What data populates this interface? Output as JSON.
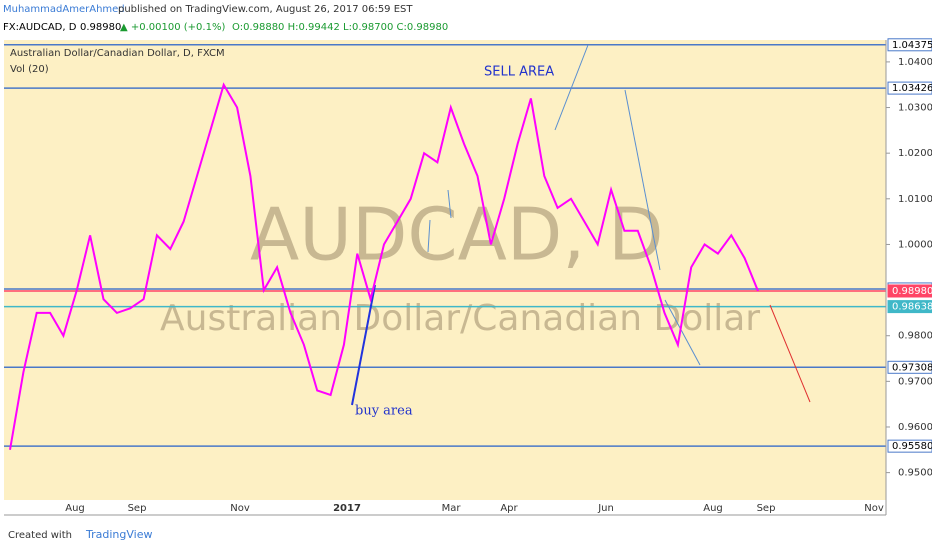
{
  "header": {
    "author": "MuhammadAmerAhmed",
    "published": "published on TradingView.com, August 26, 2017 06:59 EST",
    "symbol": "FX:AUDCAD, D",
    "last": "0.98980",
    "change": "▲ +0.00100 (+0.1%)",
    "ohlc": "O:0.98880 H:0.99442 L:0.98700 C:0.98980"
  },
  "chart_data": {
    "type": "line",
    "title": "Australian Dollar/Canadian Dollar, D, FXCM",
    "indicator": "Vol (20)",
    "watermark": "AUDCAD, D",
    "watermark_sub": "Australian Dollar/Canadian Dollar",
    "annotations": [
      "SELL AREA",
      "buy area"
    ],
    "xtick_labels": [
      "Aug",
      "Sep",
      "Nov",
      "2017",
      "Mar",
      "Apr",
      "Jun",
      "Aug",
      "Sep",
      "Nov"
    ],
    "series": [
      {
        "name": "AUDCAD",
        "color": "#ff00ff",
        "values": [
          0.955,
          0.972,
          0.985,
          0.985,
          0.98,
          0.99,
          1.002,
          0.988,
          0.985,
          0.986,
          0.988,
          1.002,
          0.999,
          1.005,
          1.015,
          1.025,
          1.035,
          1.03,
          1.015,
          0.99,
          0.995,
          0.985,
          0.978,
          0.968,
          0.967,
          0.978,
          0.998,
          0.988,
          1.0,
          1.005,
          1.01,
          1.02,
          1.018,
          1.03,
          1.022,
          1.015,
          1.0,
          1.01,
          1.022,
          1.032,
          1.015,
          1.008,
          1.01,
          1.005,
          1.0,
          1.012,
          1.003,
          1.003,
          0.995,
          0.985,
          0.978,
          0.995,
          1.0,
          0.998,
          1.002,
          0.997,
          0.9898
        ]
      }
    ],
    "levels": [
      {
        "value": 1.04375,
        "label": "1.04375",
        "color": "#4a78c8"
      },
      {
        "value": 1.03426,
        "label": "1.03426",
        "color": "#4a78c8"
      },
      {
        "value": 0.99025,
        "label": "0.99025",
        "color": "#4a78c8"
      },
      {
        "value": 0.9898,
        "label": "0.98980",
        "color": "#ff4466"
      },
      {
        "value": 0.98638,
        "label": "0.98638",
        "color": "#40b8c8"
      },
      {
        "value": 0.97308,
        "label": "0.97308",
        "color": "#4a78c8"
      },
      {
        "value": 0.9558,
        "label": "0.95580",
        "color": "#4a78c8"
      }
    ],
    "ylim": [
      0.944,
      1.0448
    ],
    "yticks": [
      {
        "value": 0.95,
        "label": "0.95000"
      },
      {
        "value": 0.96,
        "label": "0.96000"
      },
      {
        "value": 0.97,
        "label": "0.97000"
      },
      {
        "value": 0.98,
        "label": "0.98000"
      },
      {
        "value": 1.0,
        "label": "1.00000"
      },
      {
        "value": 1.01,
        "label": "1.01000"
      },
      {
        "value": 1.02,
        "label": "1.02000"
      },
      {
        "value": 1.03,
        "label": "1.03000"
      },
      {
        "value": 1.04,
        "label": "1.04000"
      }
    ]
  },
  "footer": {
    "created": "Created with",
    "brand": "TradingView"
  }
}
